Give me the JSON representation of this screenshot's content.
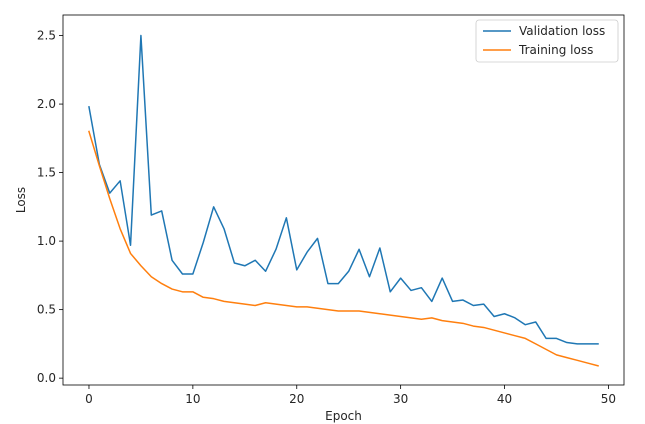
{
  "chart_data": {
    "type": "line",
    "xlabel": "Epoch",
    "ylabel": "Loss",
    "xlim": [
      -2.5,
      51.5
    ],
    "ylim": [
      -0.05,
      2.65
    ],
    "xticks": [
      0,
      10,
      20,
      30,
      40,
      50
    ],
    "yticks": [
      0.0,
      0.5,
      1.0,
      1.5,
      2.0,
      2.5
    ],
    "ytick_labels": [
      "0.0",
      "0.5",
      "1.0",
      "1.5",
      "2.0",
      "2.5"
    ],
    "grid": false,
    "legend_position": "top-right",
    "x": [
      0,
      1,
      2,
      3,
      4,
      5,
      6,
      7,
      8,
      9,
      10,
      11,
      12,
      13,
      14,
      15,
      16,
      17,
      18,
      19,
      20,
      21,
      22,
      23,
      24,
      25,
      26,
      27,
      28,
      29,
      30,
      31,
      32,
      33,
      34,
      35,
      36,
      37,
      38,
      39,
      40,
      41,
      42,
      43,
      44,
      45,
      46,
      47,
      48,
      49
    ],
    "series": [
      {
        "name": "Validation loss",
        "color": "#1f77b4",
        "values": [
          1.98,
          1.56,
          1.35,
          1.44,
          0.97,
          2.5,
          1.19,
          1.22,
          0.86,
          0.76,
          0.76,
          0.99,
          1.25,
          1.09,
          0.84,
          0.82,
          0.86,
          0.78,
          0.94,
          1.17,
          0.79,
          0.92,
          1.02,
          0.69,
          0.69,
          0.78,
          0.94,
          0.74,
          0.95,
          0.63,
          0.73,
          0.64,
          0.66,
          0.56,
          0.73,
          0.56,
          0.57,
          0.53,
          0.54,
          0.45,
          0.47,
          0.44,
          0.39,
          0.41,
          0.29,
          0.29,
          0.26,
          0.25,
          0.25,
          0.25
        ]
      },
      {
        "name": "Training loss",
        "color": "#ff7f0e",
        "values": [
          1.8,
          1.55,
          1.31,
          1.09,
          0.91,
          0.82,
          0.74,
          0.69,
          0.65,
          0.63,
          0.63,
          0.59,
          0.58,
          0.56,
          0.55,
          0.54,
          0.53,
          0.55,
          0.54,
          0.53,
          0.52,
          0.52,
          0.51,
          0.5,
          0.49,
          0.49,
          0.49,
          0.48,
          0.47,
          0.46,
          0.45,
          0.44,
          0.43,
          0.44,
          0.42,
          0.41,
          0.4,
          0.38,
          0.37,
          0.35,
          0.33,
          0.31,
          0.29,
          0.25,
          0.21,
          0.17,
          0.15,
          0.13,
          0.11,
          0.09
        ]
      }
    ]
  }
}
